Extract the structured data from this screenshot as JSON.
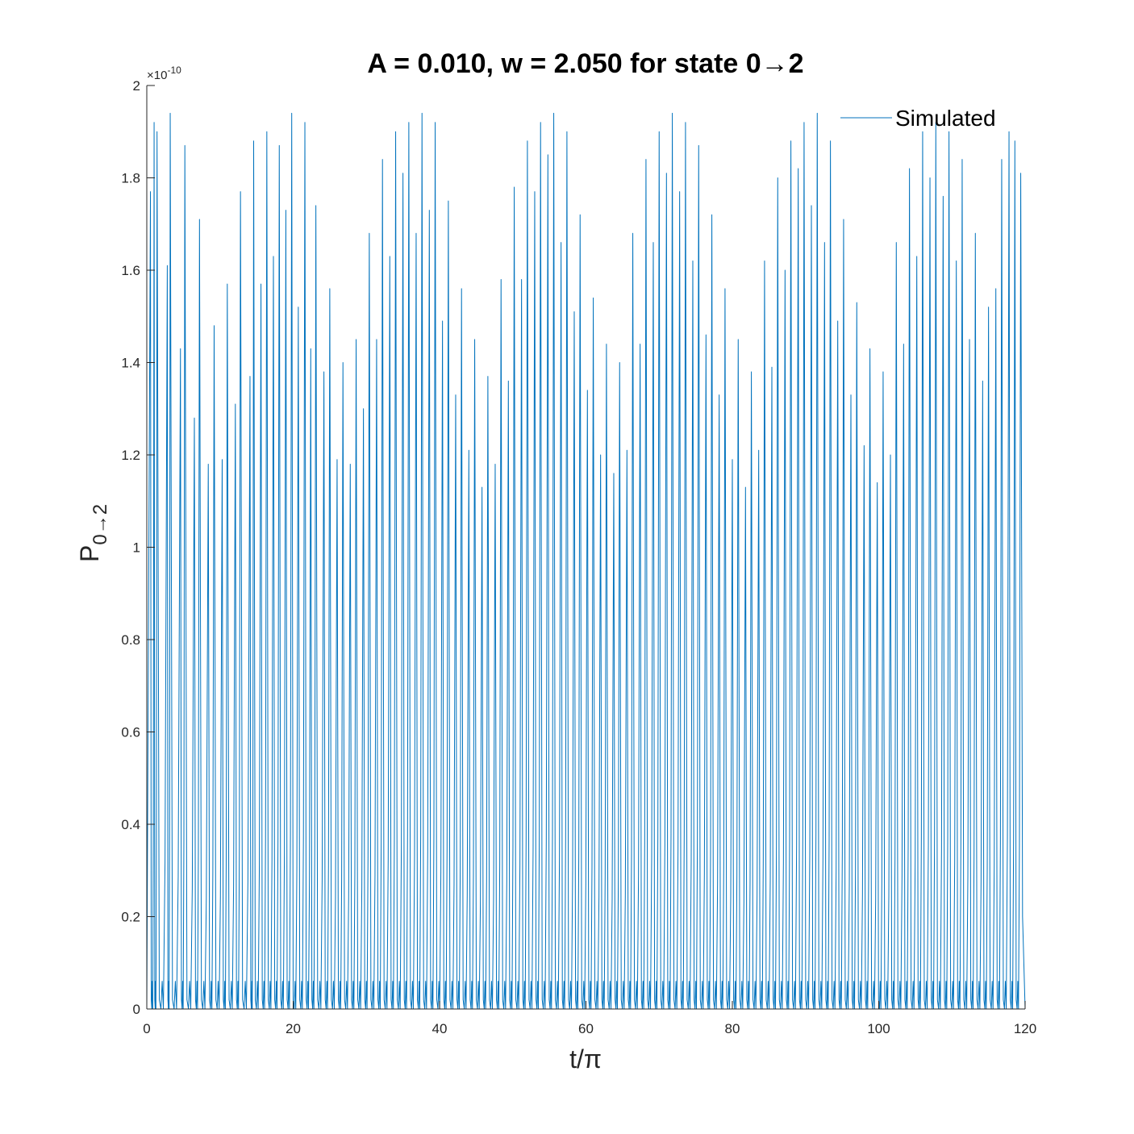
{
  "chart_data": {
    "type": "line",
    "title": "A = 0.010, w = 2.050 for state 0→2",
    "xlabel": "t/π",
    "ylabel_main": "P",
    "ylabel_sub": "0→2",
    "y_exponent_base": "×10",
    "y_exponent_power": "-10",
    "xlim": [
      0,
      120
    ],
    "ylim": [
      0,
      2
    ],
    "x_ticks": [
      0,
      20,
      40,
      60,
      80,
      100,
      120
    ],
    "x_tick_labels": [
      "0",
      "20",
      "40",
      "60",
      "80",
      "100",
      "120"
    ],
    "y_ticks": [
      0,
      0.2,
      0.4,
      0.6,
      0.8,
      1,
      1.2,
      1.4,
      1.6,
      1.8,
      2
    ],
    "y_tick_labels": [
      "0",
      "0.2",
      "0.4",
      "0.6",
      "0.8",
      "1",
      "1.2",
      "1.4",
      "1.6",
      "1.8",
      "2"
    ],
    "grid": false,
    "legend_position": "top-right",
    "series": [
      {
        "name": "Simulated",
        "color": "#0072BD",
        "peak_x": [
          0.5,
          1.0,
          1.4,
          2.8,
          3.2,
          4.6,
          5.2,
          6.5,
          7.2,
          8.4,
          9.2,
          10.3,
          11.0,
          12.1,
          12.8,
          14.1,
          14.6,
          15.6,
          16.4,
          17.3,
          18.1,
          19.0,
          19.8,
          20.7,
          21.6,
          22.4,
          23.1,
          24.2,
          25.0,
          26.0,
          26.8,
          27.8,
          28.6,
          29.6,
          30.4,
          31.4,
          32.2,
          33.2,
          34.0,
          35.0,
          35.8,
          36.8,
          37.6,
          38.6,
          39.4,
          40.4,
          41.2,
          42.2,
          43.0,
          44.0,
          44.8,
          45.8,
          46.6,
          47.6,
          48.4,
          49.4,
          50.2,
          51.2,
          52.0,
          53.0,
          53.8,
          54.8,
          55.6,
          56.6,
          57.4,
          58.4,
          59.2,
          60.2,
          61.0,
          62.0,
          62.8,
          63.8,
          64.6,
          65.6,
          66.4,
          67.4,
          68.2,
          69.2,
          70.0,
          71.0,
          71.8,
          72.8,
          73.6,
          74.6,
          75.4,
          76.4,
          77.2,
          78.2,
          79.0,
          80.0,
          80.8,
          81.8,
          82.6,
          83.6,
          84.4,
          85.4,
          86.2,
          87.2,
          88.0,
          89.0,
          89.8,
          90.8,
          91.6,
          92.6,
          93.4,
          94.4,
          95.2,
          96.2,
          97.0,
          98.0,
          98.8,
          99.8,
          100.6,
          101.6,
          102.4,
          103.4,
          104.2,
          105.2,
          106.0,
          107.0,
          107.8,
          108.8,
          109.6,
          110.6,
          111.4,
          112.4,
          113.2,
          114.2,
          115.0,
          116.0,
          116.8,
          117.8,
          118.6,
          119.4
        ],
        "peak_y": [
          1.77,
          1.92,
          1.9,
          1.61,
          1.94,
          1.43,
          1.87,
          1.28,
          1.71,
          1.18,
          1.48,
          1.19,
          1.57,
          1.31,
          1.77,
          1.37,
          1.88,
          1.57,
          1.9,
          1.63,
          1.87,
          1.73,
          1.94,
          1.52,
          1.92,
          1.43,
          1.74,
          1.38,
          1.56,
          1.19,
          1.4,
          1.18,
          1.45,
          1.3,
          1.68,
          1.45,
          1.84,
          1.63,
          1.9,
          1.81,
          1.92,
          1.68,
          1.94,
          1.73,
          1.92,
          1.49,
          1.75,
          1.33,
          1.56,
          1.21,
          1.45,
          1.13,
          1.37,
          1.18,
          1.58,
          1.36,
          1.78,
          1.58,
          1.88,
          1.77,
          1.92,
          1.85,
          1.94,
          1.66,
          1.9,
          1.51,
          1.72,
          1.34,
          1.54,
          1.2,
          1.44,
          1.16,
          1.4,
          1.21,
          1.68,
          1.44,
          1.84,
          1.66,
          1.9,
          1.81,
          1.94,
          1.77,
          1.92,
          1.62,
          1.87,
          1.46,
          1.72,
          1.33,
          1.56,
          1.19,
          1.45,
          1.13,
          1.38,
          1.21,
          1.62,
          1.39,
          1.8,
          1.6,
          1.88,
          1.82,
          1.92,
          1.74,
          1.94,
          1.66,
          1.88,
          1.49,
          1.71,
          1.33,
          1.53,
          1.22,
          1.43,
          1.14,
          1.38,
          1.2,
          1.66,
          1.44,
          1.82,
          1.63,
          1.9,
          1.8,
          1.92,
          1.76,
          1.9,
          1.62,
          1.84,
          1.45,
          1.68,
          1.36,
          1.52,
          1.56,
          1.84,
          1.9,
          1.88,
          1.81
        ]
      }
    ]
  }
}
